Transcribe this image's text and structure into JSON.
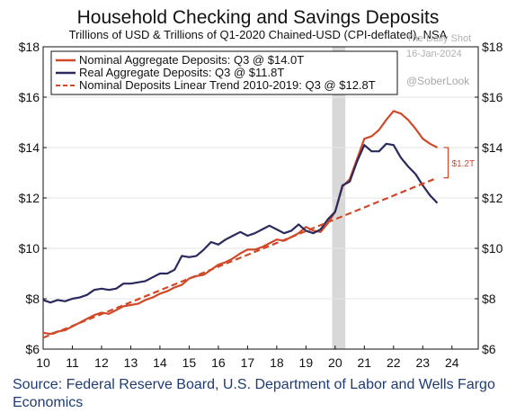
{
  "chart_data": {
    "type": "line",
    "title": "Household Checking and Savings Deposits",
    "subtitle": "Trillions of USD & Trillions of Q1-2020 Chained-USD (CPI-deflated), NSA",
    "xlabel": "",
    "ylabel": "",
    "xlim": [
      2010,
      2024.9
    ],
    "ylim": [
      6,
      18
    ],
    "x_ticks": [
      10,
      11,
      12,
      13,
      14,
      15,
      16,
      17,
      18,
      19,
      20,
      21,
      22,
      23,
      24
    ],
    "x_tick_labels": [
      "10",
      "11",
      "12",
      "13",
      "14",
      "15",
      "16",
      "17",
      "18",
      "19",
      "20",
      "21",
      "22",
      "23",
      "24"
    ],
    "y_ticks": [
      6,
      8,
      10,
      12,
      14,
      16,
      18
    ],
    "y_tick_labels_left": [
      "$6",
      "$8",
      "$10",
      "$12",
      "$14",
      "$16",
      "$18"
    ],
    "y_tick_labels_right": [
      "$6",
      "$8",
      "$10",
      "$12",
      "$14",
      "$16",
      "$18"
    ],
    "grid": true,
    "legend_position": "top-left",
    "shaded_regions": [
      {
        "x0": 2019.9,
        "x1": 2020.35,
        "color": "#d8d8d8"
      }
    ],
    "series": [
      {
        "name": "Nominal Aggregate Deposits: Q3 @ $14.0T",
        "color": "#d04a2a",
        "style": "solid",
        "x": [
          2010.0,
          2010.25,
          2010.5,
          2010.75,
          2011.0,
          2011.25,
          2011.5,
          2011.75,
          2012.0,
          2012.25,
          2012.5,
          2012.75,
          2013.0,
          2013.25,
          2013.5,
          2013.75,
          2014.0,
          2014.25,
          2014.5,
          2014.75,
          2015.0,
          2015.25,
          2015.5,
          2015.75,
          2016.0,
          2016.25,
          2016.5,
          2016.75,
          2017.0,
          2017.25,
          2017.5,
          2017.75,
          2018.0,
          2018.25,
          2018.5,
          2018.75,
          2019.0,
          2019.25,
          2019.5,
          2019.75,
          2020.0,
          2020.25,
          2020.5,
          2020.75,
          2021.0,
          2021.25,
          2021.5,
          2021.75,
          2022.0,
          2022.25,
          2022.5,
          2022.75,
          2023.0,
          2023.25,
          2023.5
        ],
        "values": [
          6.65,
          6.6,
          6.7,
          6.75,
          6.9,
          7.05,
          7.2,
          7.35,
          7.45,
          7.4,
          7.55,
          7.7,
          7.75,
          7.8,
          7.95,
          8.05,
          8.2,
          8.3,
          8.45,
          8.55,
          8.8,
          8.9,
          8.95,
          9.15,
          9.35,
          9.45,
          9.6,
          9.8,
          9.95,
          9.95,
          10.05,
          10.2,
          10.35,
          10.3,
          10.45,
          10.6,
          10.85,
          10.7,
          10.65,
          11.0,
          11.45,
          12.45,
          12.75,
          13.55,
          14.35,
          14.45,
          14.7,
          15.1,
          15.45,
          15.35,
          15.1,
          14.75,
          14.35,
          14.15,
          14.0
        ]
      },
      {
        "name": "Real Aggregate Deposits: Q3 @ $11.8T",
        "color": "#2a2a5e",
        "style": "solid",
        "x": [
          2010.0,
          2010.25,
          2010.5,
          2010.75,
          2011.0,
          2011.25,
          2011.5,
          2011.75,
          2012.0,
          2012.25,
          2012.5,
          2012.75,
          2013.0,
          2013.25,
          2013.5,
          2013.75,
          2014.0,
          2014.25,
          2014.5,
          2014.75,
          2015.0,
          2015.25,
          2015.5,
          2015.75,
          2016.0,
          2016.25,
          2016.5,
          2016.75,
          2017.0,
          2017.25,
          2017.5,
          2017.75,
          2018.0,
          2018.25,
          2018.5,
          2018.75,
          2019.0,
          2019.25,
          2019.5,
          2019.75,
          2020.0,
          2020.25,
          2020.5,
          2020.75,
          2021.0,
          2021.25,
          2021.5,
          2021.75,
          2022.0,
          2022.25,
          2022.5,
          2022.75,
          2023.0,
          2023.25,
          2023.5
        ],
        "values": [
          7.95,
          7.85,
          7.95,
          7.9,
          8.0,
          8.05,
          8.15,
          8.35,
          8.4,
          8.35,
          8.4,
          8.6,
          8.6,
          8.65,
          8.7,
          8.85,
          9.0,
          9.0,
          9.15,
          9.7,
          9.65,
          9.7,
          9.95,
          10.25,
          10.15,
          10.35,
          10.5,
          10.65,
          10.5,
          10.6,
          10.75,
          10.9,
          10.75,
          10.6,
          10.7,
          10.95,
          10.7,
          10.6,
          10.75,
          11.15,
          11.45,
          12.5,
          12.65,
          13.45,
          14.1,
          13.85,
          13.85,
          14.15,
          14.1,
          13.6,
          13.25,
          12.95,
          12.5,
          12.1,
          11.8
        ]
      },
      {
        "name": "Nominal Deposits Linear Trend 2010-2019: Q3 @ $12.8T",
        "color": "#d04a2a",
        "style": "dashed",
        "x": [
          2010.0,
          2023.5
        ],
        "values": [
          6.45,
          12.8
        ]
      }
    ],
    "annotations": [
      {
        "text": "$1.2T",
        "x": 2023.5,
        "y_from": 12.8,
        "y_to": 14.0,
        "color": "#d04a2a"
      }
    ]
  },
  "watermark": {
    "line1": "The Daily Shot",
    "line2": "16-Jan-2024",
    "line3": "@SoberLook"
  },
  "source": {
    "line1": "Source: Federal Reserve Board, U.S. Department of Labor and Wells Fargo",
    "line2": "Economics"
  }
}
